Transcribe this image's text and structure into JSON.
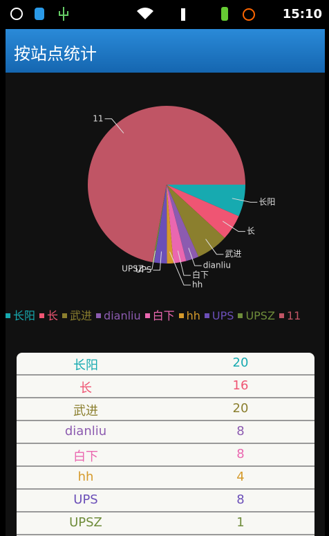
{
  "status": {
    "time": "15:10"
  },
  "header": {
    "title": "按站点统计"
  },
  "chart_data": {
    "type": "pie",
    "categories": [
      "长阳",
      "长",
      "武进",
      "dianliu",
      "白下",
      "hh",
      "UPS",
      "UPSZ",
      "11"
    ],
    "values": [
      20,
      16,
      20,
      8,
      8,
      4,
      8,
      1,
      220
    ],
    "colors": [
      "#17aab0",
      "#ef5573",
      "#8b7f2e",
      "#8c5bb0",
      "#ea67b0",
      "#d59a2b",
      "#6b4fb8",
      "#6e8c3a",
      "#c05565"
    ]
  }
}
